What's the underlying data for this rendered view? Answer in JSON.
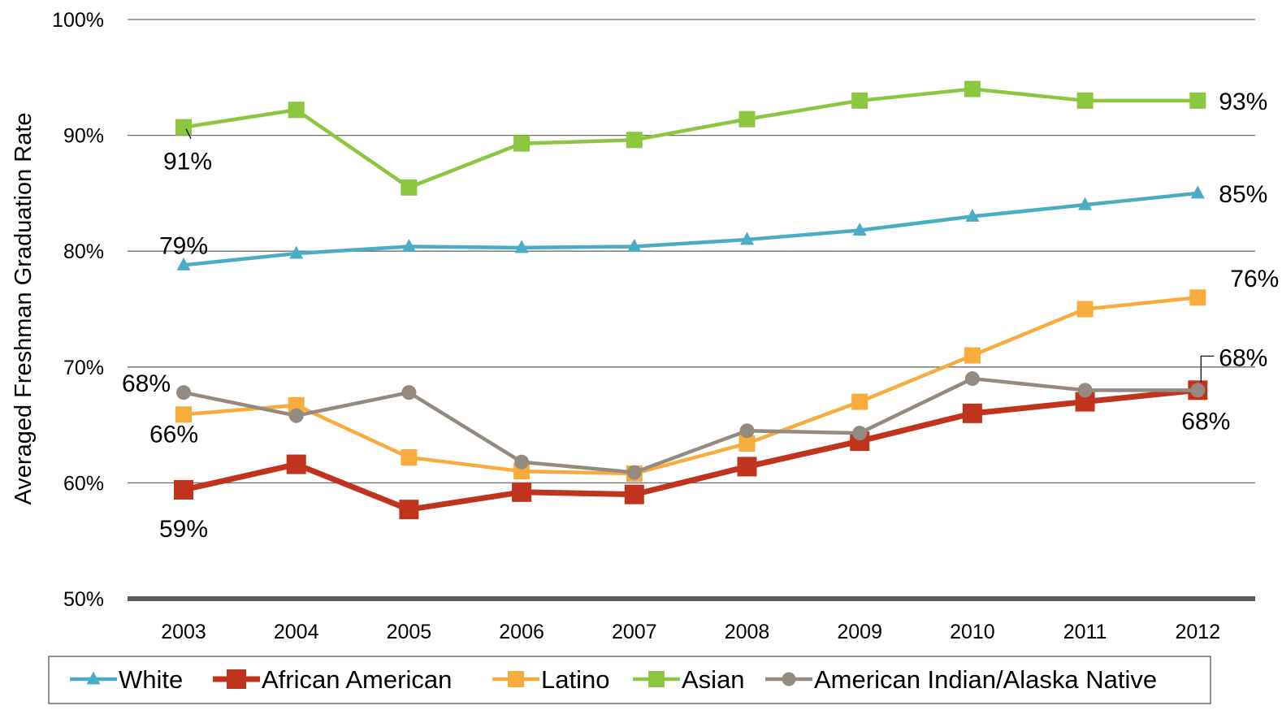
{
  "chart_data": {
    "type": "line",
    "title": "",
    "xlabel": "",
    "ylabel": "Averaged Freshman Graduation Rate",
    "ylim": [
      50,
      100
    ],
    "yticks": [
      50,
      60,
      70,
      80,
      90,
      100
    ],
    "ytick_labels": [
      "50%",
      "60%",
      "70%",
      "80%",
      "90%",
      "100%"
    ],
    "categories": [
      "2003",
      "2004",
      "2005",
      "2006",
      "2007",
      "2008",
      "2009",
      "2010",
      "2011",
      "2012"
    ],
    "grid": true,
    "legend_position": "bottom",
    "series": [
      {
        "name": "White",
        "color": "#4bacc6",
        "marker": "triangle",
        "values": [
          78.8,
          79.8,
          80.4,
          80.3,
          80.4,
          81.0,
          81.8,
          83.0,
          84.0,
          85.0
        ],
        "labels": [
          {
            "index": 0,
            "text": "79%"
          },
          {
            "index": 9,
            "text": "85%"
          }
        ]
      },
      {
        "name": "African American",
        "color": "#c0341d",
        "marker": "square",
        "values": [
          59.4,
          61.6,
          57.7,
          59.2,
          59.0,
          61.4,
          63.6,
          66.0,
          67.0,
          68.0
        ],
        "labels": [
          {
            "index": 0,
            "text": "59%"
          },
          {
            "index": 9,
            "text": "68%"
          }
        ]
      },
      {
        "name": "Latino",
        "color": "#f9ac3e",
        "marker": "square",
        "values": [
          65.9,
          66.7,
          62.2,
          61.0,
          60.8,
          63.4,
          67.0,
          71.0,
          75.0,
          76.0
        ],
        "labels": [
          {
            "index": 0,
            "text": "66%"
          },
          {
            "index": 9,
            "text": "76%"
          }
        ]
      },
      {
        "name": "Asian",
        "color": "#8dc63f",
        "marker": "square",
        "values": [
          90.7,
          92.2,
          85.5,
          89.3,
          89.6,
          91.4,
          93.0,
          94.0,
          93.0,
          93.0
        ],
        "labels": [
          {
            "index": 0,
            "text": "91%"
          },
          {
            "index": 9,
            "text": "93%"
          }
        ]
      },
      {
        "name": "American Indian/Alaska Native",
        "color": "#948a7f",
        "marker": "circle",
        "values": [
          67.8,
          65.8,
          67.8,
          61.8,
          60.9,
          64.5,
          64.3,
          69.0,
          68.0,
          68.0
        ],
        "labels": [
          {
            "index": 0,
            "text": "68%"
          },
          {
            "index": 9,
            "text": "68%"
          }
        ]
      }
    ]
  }
}
